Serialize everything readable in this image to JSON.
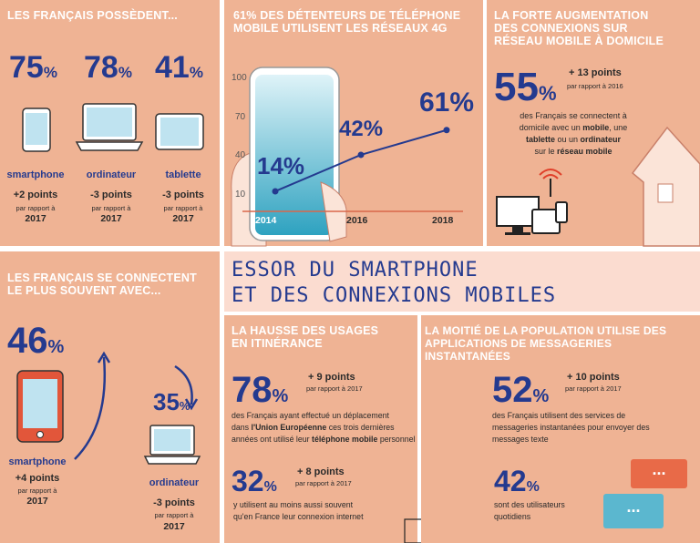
{
  "p1": {
    "heading": "LES FRANÇAIS POSSÈDENT...",
    "items": [
      {
        "value": "75",
        "unit": "%",
        "label": "smartphone",
        "points": "+2 points",
        "ref": "par rapport à",
        "year": "2017"
      },
      {
        "value": "78",
        "unit": "%",
        "label": "ordinateur",
        "points": "-3 points",
        "ref": "par rapport à",
        "year": "2017"
      },
      {
        "value": "41",
        "unit": "%",
        "label": "tablette",
        "points": "-3 points",
        "ref": "par rapport à",
        "year": "2017"
      }
    ]
  },
  "p2": {
    "heading": "61% DES DÉTENTEURS DE TÉLÉPHONE\nMOBILE UTILISENT LES RÉSEAUX 4G",
    "chart_data": {
      "type": "line",
      "x": [
        "2014",
        "2016",
        "2018"
      ],
      "y": [
        14,
        42,
        61
      ],
      "data_labels": [
        "14%",
        "42%",
        "61%"
      ],
      "yticks": [
        "100",
        "70",
        "40",
        "10"
      ],
      "ylim": [
        0,
        100
      ]
    }
  },
  "p3": {
    "heading": "LA FORTE AUGMENTATION\nDES CONNEXIONS SUR\nRÉSEAU MOBILE À DOMICILE",
    "value": "55",
    "unit": "%",
    "points": "+ 13 points",
    "ref": "par rapport à 2016",
    "text_1": "des Français se connectent à",
    "text_2": "domicile avec un",
    "mobile": "mobile",
    "text_3": ", une",
    "tablette": "tablette",
    "text_4": " ou un ",
    "ordinateur": "ordinateur",
    "text_5": "sur le",
    "reseau": "réseau mobile"
  },
  "title": {
    "line1": "ESSOR DU SMARTPHONE",
    "line2": "ET DES CONNEXIONS MOBILES"
  },
  "p4": {
    "heading": "LES FRANÇAIS SE CONNECTENT\nLE PLUS SOUVENT AVEC...",
    "smartphone": {
      "value": "46",
      "unit": "%",
      "label": "smartphone",
      "points": "+4 points",
      "ref": "par rapport à",
      "year": "2017"
    },
    "ordinateur": {
      "value": "35",
      "unit": "%",
      "label": "ordinateur",
      "points": "-3 points",
      "ref": "par rapport à",
      "year": "2017"
    }
  },
  "p5": {
    "heading": "LA HAUSSE DES USAGES\nEN ITINÉRANCE",
    "value": "78",
    "unit": "%",
    "points": "+ 9 points",
    "ref": "par rapport à 2017",
    "line1": "des Français ayant effectué un déplacement",
    "line2a": "dans ",
    "ue": "l'Union Européenne",
    "line2b": " ces trois dernières",
    "line3a": "années ont utilisé leur ",
    "tel": "téléphone mobile",
    "line3b": " personnel",
    "value2": "32",
    "unit2": "%",
    "points2": "+ 8 points",
    "ref2": "par rapport à 2017",
    "line4": "y utilisent au moins aussi souvent",
    "line5": "qu'en France leur connexion internet"
  },
  "p6": {
    "heading": "LA MOITIÉ DE LA POPULATION  UTILISE DES\nAPPLICATIONS DE MESSAGERIES INSTANTANÉES",
    "value": "52",
    "unit": "%",
    "points": "+ 10 points",
    "ref": "par rapport à 2017",
    "line1": "des Français utilisent des services de",
    "line2": "messageries instantanées pour envoyer des",
    "line3": "messages texte",
    "value2": "42",
    "unit2": "%",
    "line4": "sont des utilisateurs",
    "line5": "quotidiens",
    "bubble": "..."
  },
  "colors": {
    "panel": "#efb394",
    "accent": "#243a8f",
    "title_bg": "#fbdcd0"
  }
}
